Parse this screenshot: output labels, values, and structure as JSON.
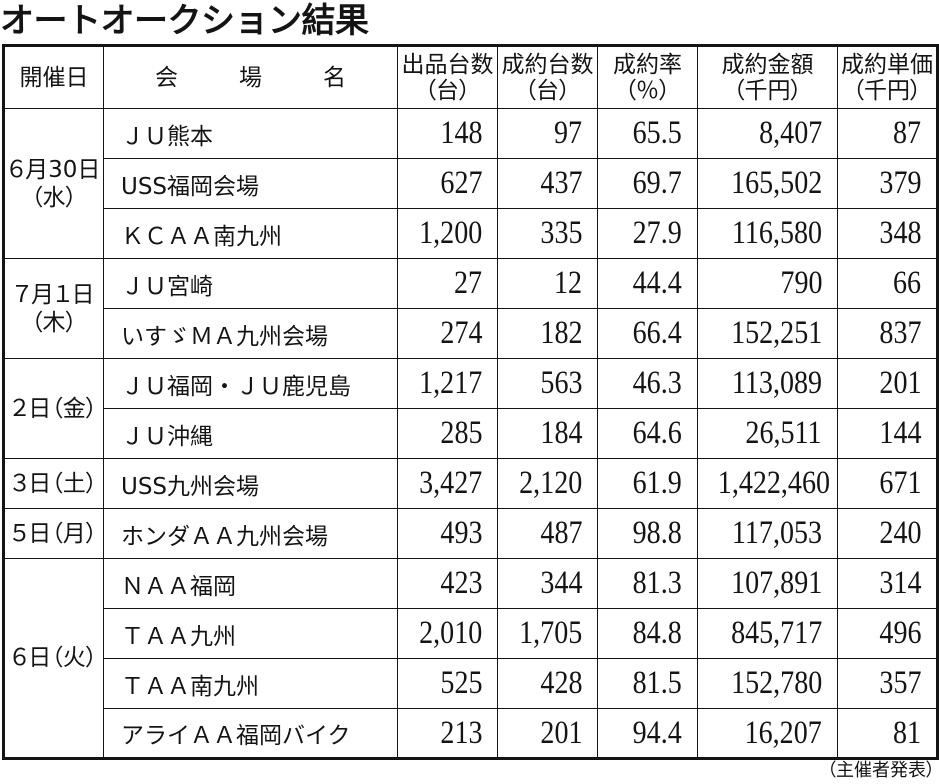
{
  "title": "オートオークション結果",
  "header": {
    "date": "開催日",
    "venue": "会　場　名",
    "listed": {
      "label": "出品台数",
      "unit": "（台）"
    },
    "sold": {
      "label": "成約台数",
      "unit": "（台）"
    },
    "rate": {
      "label": "成約率",
      "unit": "（％）"
    },
    "amount": {
      "label": "成約金額",
      "unit": "（千円）"
    },
    "unit_price": {
      "label": "成約単価",
      "unit": "（千円）"
    }
  },
  "groups": [
    {
      "date": "６月30日",
      "weekday": "（水）",
      "rows": [
        {
          "venue": "ＪＵ熊本",
          "listed": "148",
          "sold": "97",
          "rate": "65.5",
          "amount": "8,407",
          "unit_price": "87"
        },
        {
          "venue": "USS福岡会場",
          "listed": "627",
          "sold": "437",
          "rate": "69.7",
          "amount": "165,502",
          "unit_price": "379"
        },
        {
          "venue": "ＫＣＡＡ南九州",
          "listed": "1,200",
          "sold": "335",
          "rate": "27.9",
          "amount": "116,580",
          "unit_price": "348"
        }
      ]
    },
    {
      "date": "７月１日",
      "weekday": "（木）",
      "rows": [
        {
          "venue": "ＪＵ宮崎",
          "listed": "27",
          "sold": "12",
          "rate": "44.4",
          "amount": "790",
          "unit_price": "66"
        },
        {
          "venue": "いすゞＭＡ九州会場",
          "listed": "274",
          "sold": "182",
          "rate": "66.4",
          "amount": "152,251",
          "unit_price": "837"
        }
      ]
    },
    {
      "date": "２日",
      "weekday": "（金）",
      "rows": [
        {
          "venue": "ＪＵ福岡・ＪＵ鹿児島",
          "listed": "1,217",
          "sold": "563",
          "rate": "46.3",
          "amount": "113,089",
          "unit_price": "201"
        },
        {
          "venue": "ＪＵ沖縄",
          "listed": "285",
          "sold": "184",
          "rate": "64.6",
          "amount": "26,511",
          "unit_price": "144"
        }
      ]
    },
    {
      "date": "３日",
      "weekday": "（土）",
      "rows": [
        {
          "venue": "USS九州会場",
          "listed": "3,427",
          "sold": "2,120",
          "rate": "61.9",
          "amount": "1,422,460",
          "unit_price": "671"
        }
      ]
    },
    {
      "date": "５日",
      "weekday": "（月）",
      "rows": [
        {
          "venue": "ホンダＡＡ九州会場",
          "listed": "493",
          "sold": "487",
          "rate": "98.8",
          "amount": "117,053",
          "unit_price": "240"
        }
      ]
    },
    {
      "date": "６日",
      "weekday": "（火）",
      "rows": [
        {
          "venue": "ＮＡＡ福岡",
          "listed": "423",
          "sold": "344",
          "rate": "81.3",
          "amount": "107,891",
          "unit_price": "314"
        },
        {
          "venue": "ＴＡＡ九州",
          "listed": "2,010",
          "sold": "1,705",
          "rate": "84.8",
          "amount": "845,717",
          "unit_price": "496"
        },
        {
          "venue": "ＴＡＡ南九州",
          "listed": "525",
          "sold": "428",
          "rate": "81.5",
          "amount": "152,780",
          "unit_price": "357"
        },
        {
          "venue": "アライＡＡ福岡バイク",
          "listed": "213",
          "sold": "201",
          "rate": "94.4",
          "amount": "16,207",
          "unit_price": "81"
        }
      ]
    }
  ],
  "source_note": "（主催者発表）"
}
